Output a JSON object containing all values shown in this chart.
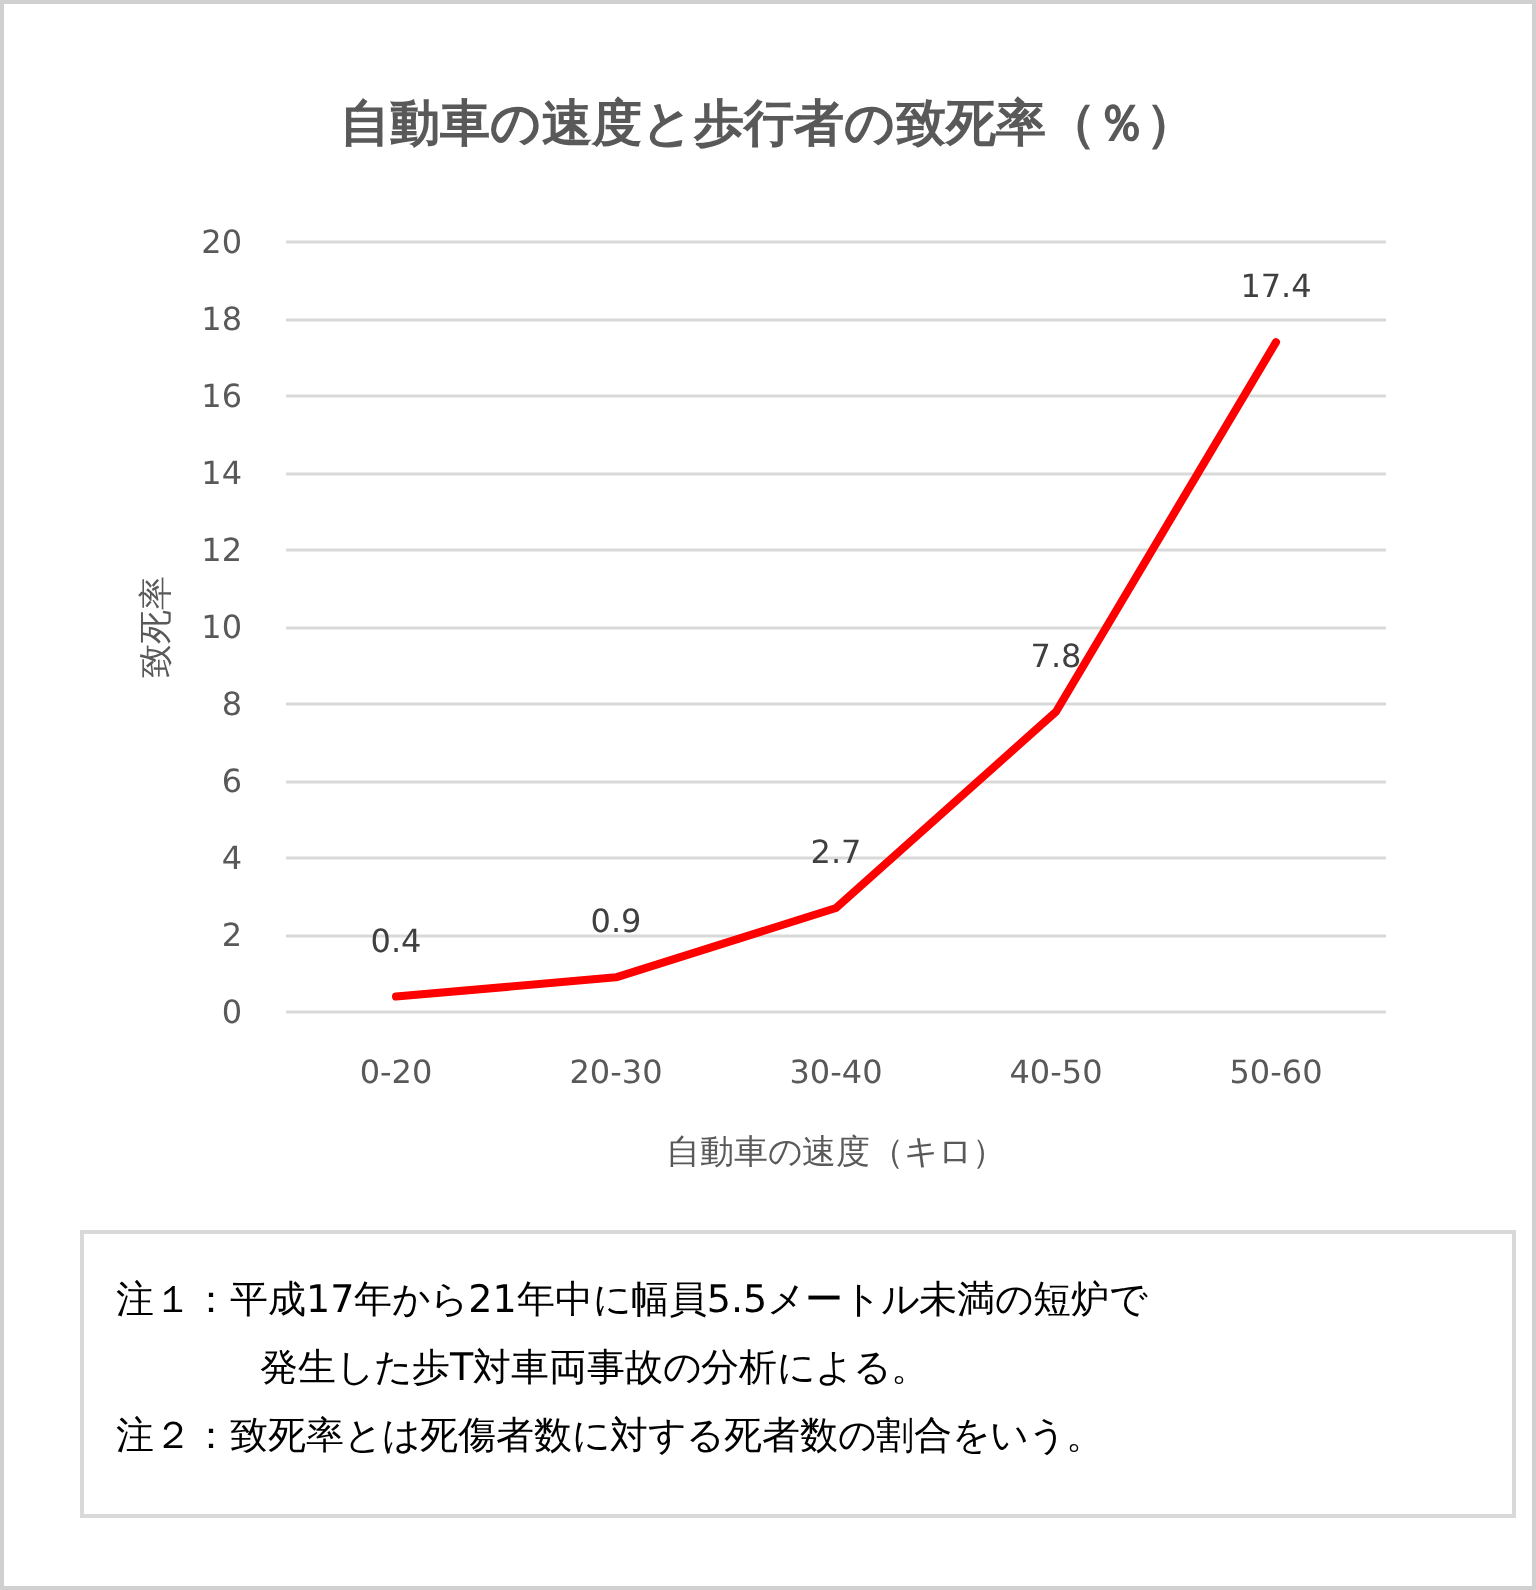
{
  "chart_data": {
    "type": "line",
    "title": "自動車の速度と歩行者の致死率（％）",
    "xlabel": "自動車の速度（キロ）",
    "ylabel": "致死率",
    "categories": [
      "0-20",
      "20-30",
      "30-40",
      "40-50",
      "50-60"
    ],
    "series": [
      {
        "color": "#ff0000",
        "values": [
          0.4,
          0.9,
          2.7,
          7.8,
          17.4
        ]
      }
    ],
    "ylim": [
      0,
      20
    ],
    "yticks": [
      0,
      2,
      4,
      6,
      8,
      10,
      12,
      14,
      16,
      18,
      20
    ],
    "grid": "y",
    "marker": "none",
    "line_style": "solid",
    "data_labels": true,
    "annotations": [
      "注１：平成17年から21年中に幅員5.5メートル未満の短炉で発生した歩T対車両事故の分析による。",
      "注２：致死率とは死傷者数に対する死者数の割合をいう。"
    ]
  }
}
